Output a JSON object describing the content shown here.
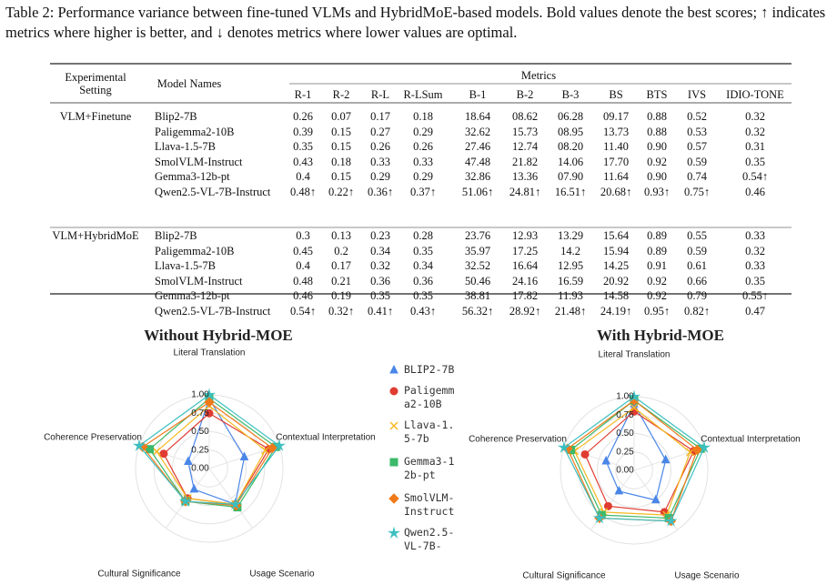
{
  "caption": "Table 2: Performance variance between fine-tuned VLMs and HybridMoE-based models. Bold values denote the best scores; ↑ indicates metrics where higher is better, and ↓ denotes metrics where lower values are optimal.",
  "table": {
    "header": {
      "setting": "Experimental Setting",
      "model": "Model Names",
      "metrics": "Metrics",
      "columns": [
        "R-1",
        "R-2",
        "R-L",
        "R-LSum",
        "B-1",
        "B-2",
        "B-3",
        "BS",
        "BTS",
        "IVS",
        "IDIO-TONE"
      ]
    },
    "groups": [
      {
        "setting": "VLM+Finetune",
        "rows": [
          [
            "Blip2-7B",
            "0.26",
            "0.07",
            "0.17",
            "0.18",
            "18.64",
            "08.62",
            "06.28",
            "09.17",
            "0.88",
            "0.52",
            "0.32"
          ],
          [
            "Paligemma2-10B",
            "0.39",
            "0.15",
            "0.27",
            "0.29",
            "32.62",
            "15.73",
            "08.95",
            "13.73",
            "0.88",
            "0.53",
            "0.32"
          ],
          [
            "Llava-1.5-7B",
            "0.35",
            "0.15",
            "0.26",
            "0.26",
            "27.46",
            "12.74",
            "08.20",
            "11.40",
            "0.90",
            "0.57",
            "0.31"
          ],
          [
            "SmolVLM-Instruct",
            "0.43",
            "0.18",
            "0.33",
            "0.33",
            "47.48",
            "21.82",
            "14.06",
            "17.70",
            "0.92",
            "0.59",
            "0.35"
          ],
          [
            "Gemma3-12b-pt",
            "0.4",
            "0.15",
            "0.29",
            "0.29",
            "32.86",
            "13.36",
            "07.90",
            "11.64",
            "0.90",
            "0.74",
            "0.54↑"
          ],
          [
            "Qwen2.5-VL-7B-Instruct",
            "0.48↑",
            "0.22↑",
            "0.36↑",
            "0.37↑",
            "51.06↑",
            "24.81↑",
            "16.51↑",
            "20.68↑",
            "0.93↑",
            "0.75↑",
            "0.46"
          ]
        ]
      },
      {
        "setting": "VLM+HybridMoE",
        "rows": [
          [
            "Blip2-7B",
            "0.3",
            "0.13",
            "0.23",
            "0.28",
            "23.76",
            "12.93",
            "13.29",
            "15.64",
            "0.89",
            "0.55",
            "0.33"
          ],
          [
            "Paligemma2-10B",
            "0.45",
            "0.2",
            "0.34",
            "0.35",
            "35.97",
            "17.25",
            "14.2",
            "15.94",
            "0.89",
            "0.59",
            "0.32"
          ],
          [
            "Llava-1.5-7B",
            "0.4",
            "0.17",
            "0.32",
            "0.34",
            "32.52",
            "16.64",
            "12.95",
            "14.25",
            "0.91",
            "0.61",
            "0.33"
          ],
          [
            "SmolVLM-Instruct",
            "0.48",
            "0.21",
            "0.36",
            "0.36",
            "50.46",
            "24.16",
            "16.59",
            "20.92",
            "0.92",
            "0.66",
            "0.35"
          ],
          [
            "Gemma3-12b-pt",
            "0.46",
            "0.19",
            "0.35",
            "0.35",
            "38.81",
            "17.82",
            "11.93",
            "14.58",
            "0.92",
            "0.79",
            "0.55↑"
          ],
          [
            "Qwen2.5-VL-7B-Instruct",
            "0.54↑",
            "0.32↑",
            "0.41↑",
            "0.43↑",
            "56.32↑",
            "28.92↑",
            "21.48↑",
            "24.19↑",
            "0.95↑",
            "0.82↑",
            "0.47"
          ]
        ]
      }
    ]
  },
  "chart_data": {
    "type": "radar",
    "axes": [
      "Literal Translation",
      "Contextual Interpretation",
      "Usage Scenario",
      "Cultural Significance",
      "Coherence Preservation"
    ],
    "rlim": [
      0,
      1
    ],
    "rticks": [
      {
        "value": 0,
        "label": "0.00"
      },
      {
        "value": 0.25,
        "label": "0.25"
      },
      {
        "value": 0.5,
        "label": "0.50"
      },
      {
        "value": 0.75,
        "label": "0.75"
      },
      {
        "value": 1,
        "label": "1.00"
      }
    ],
    "series": [
      {
        "name": "BLIP2-7B",
        "color": "#4a86e8",
        "marker": "triangle"
      },
      {
        "name": "Paligemma2-10B",
        "color": "#e03c31",
        "marker": "circle"
      },
      {
        "name": "Llava-1.5-7b",
        "color": "#f5b820",
        "marker": "x"
      },
      {
        "name": "Gemma3-12b-pt",
        "color": "#3cb96a",
        "marker": "square"
      },
      {
        "name": "SmolVLM-Instruct",
        "color": "#f07a1a",
        "marker": "diamond"
      },
      {
        "name": "Qwen2.5-VL-7B-",
        "color": "#3cbfc0",
        "marker": "star"
      }
    ],
    "panels": [
      {
        "title": "Without Hybrid-MOE",
        "title_color": "#9b30e0",
        "values": [
          [
            0.95,
            0.5,
            0.6,
            0.35,
            0.3
          ],
          [
            0.75,
            0.85,
            0.6,
            0.5,
            0.65
          ],
          [
            0.85,
            0.8,
            0.6,
            0.5,
            0.75
          ],
          [
            0.95,
            0.95,
            0.65,
            0.55,
            0.85
          ],
          [
            0.9,
            0.9,
            0.62,
            0.55,
            0.95
          ],
          [
            1,
            1,
            0.6,
            0.55,
            1
          ]
        ]
      },
      {
        "title": "With Hybrid-MOE",
        "title_color": "#3cc060",
        "values": [
          [
            0.9,
            0.45,
            0.5,
            0.35,
            0.4
          ],
          [
            0.8,
            0.85,
            0.7,
            0.6,
            0.7
          ],
          [
            0.85,
            0.8,
            0.75,
            0.7,
            0.85
          ],
          [
            0.95,
            0.95,
            0.8,
            0.75,
            0.9
          ],
          [
            0.95,
            0.9,
            0.85,
            0.8,
            0.95
          ],
          [
            1,
            1,
            0.85,
            0.8,
            1
          ]
        ]
      }
    ]
  }
}
